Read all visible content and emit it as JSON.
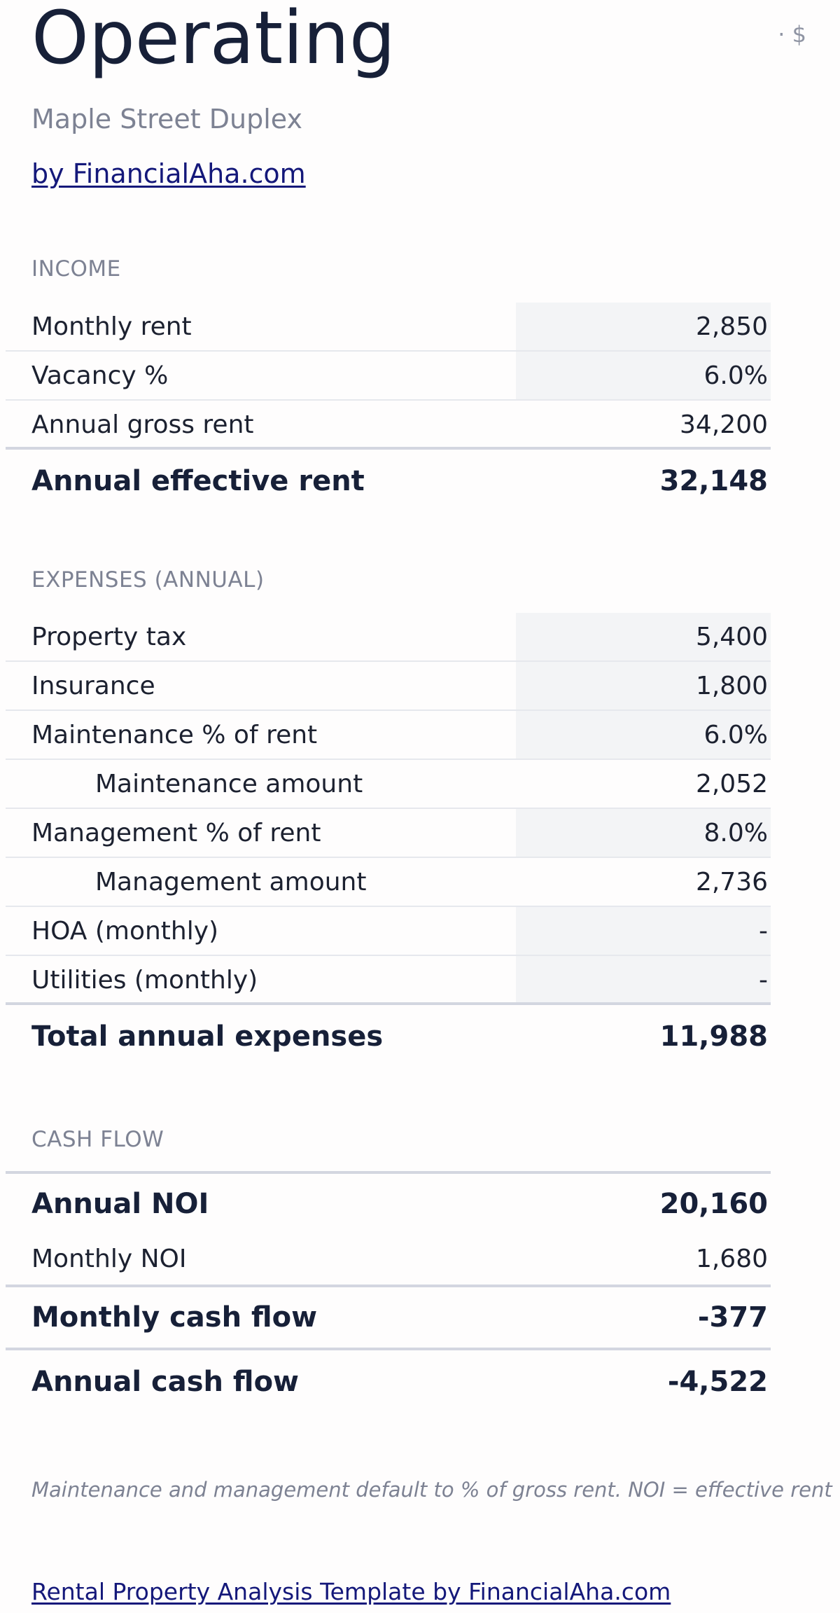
{
  "header": {
    "title": "Operating",
    "currency": "· $",
    "subtitle": "Maple Street Duplex",
    "byline": "by FinancialAha.com"
  },
  "income": {
    "label": "INCOME",
    "rows": [
      {
        "label": "Monthly rent",
        "value": "2,850"
      },
      {
        "label": "Vacancy %",
        "value": "6.0%"
      },
      {
        "label": "Annual gross rent",
        "value": "34,200"
      }
    ],
    "total": {
      "label": "Annual effective rent",
      "value": "32,148"
    }
  },
  "expenses": {
    "label": "EXPENSES (ANNUAL)",
    "rows": [
      {
        "label": "Property tax",
        "value": "5,400"
      },
      {
        "label": "Insurance",
        "value": "1,800"
      },
      {
        "label": "Maintenance % of rent",
        "value": "6.0%"
      },
      {
        "label": "Maintenance amount",
        "value": "2,052"
      },
      {
        "label": "Management % of rent",
        "value": "8.0%"
      },
      {
        "label": "Management amount",
        "value": "2,736"
      },
      {
        "label": "HOA (monthly)",
        "value": "-"
      },
      {
        "label": "Utilities (monthly)",
        "value": "-"
      }
    ],
    "total": {
      "label": "Total annual expenses",
      "value": "11,988"
    }
  },
  "cashflow": {
    "label": "CASH FLOW",
    "annual_noi": {
      "label": "Annual NOI",
      "value": "20,160"
    },
    "monthly_noi": {
      "label": "Monthly NOI",
      "value": "1,680"
    },
    "monthly_cash_flow": {
      "label": "Monthly cash flow",
      "value": "-377"
    },
    "annual_cash_flow": {
      "label": "Annual cash flow",
      "value": "-4,522"
    }
  },
  "note": "Maintenance and management default to % of gross rent. NOI = effective rent",
  "footer": {
    "link": "Rental Property Analysis Template by FinancialAha.com"
  }
}
